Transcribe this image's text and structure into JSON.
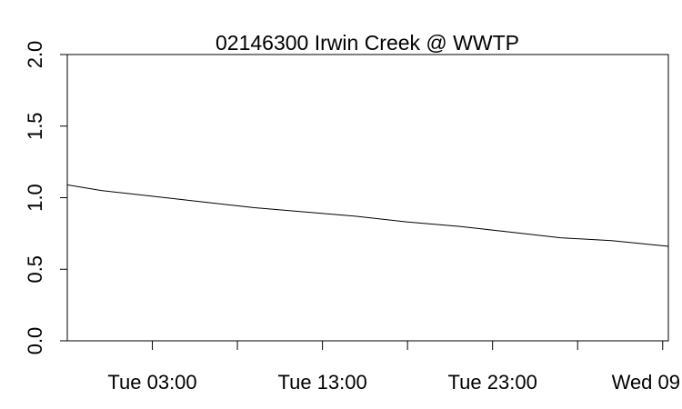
{
  "chart_data": {
    "type": "line",
    "title": "02146300 Irwin Creek @ WWTP",
    "xlabel": "",
    "ylabel": "",
    "ylim": [
      0,
      2
    ],
    "y_ticks": [
      {
        "value": 0.0,
        "label": "0.0"
      },
      {
        "value": 0.5,
        "label": "0.5"
      },
      {
        "value": 1.0,
        "label": "1.0"
      },
      {
        "value": 1.5,
        "label": "1.5"
      },
      {
        "value": 2.0,
        "label": "2.0"
      }
    ],
    "x_ticks": [
      {
        "label": "Tue 03:00",
        "x": "Tue 03:00"
      },
      {
        "label": "",
        "x": "Tue 08:00"
      },
      {
        "label": "Tue 13:00",
        "x": "Tue 13:00"
      },
      {
        "label": "",
        "x": "Tue 18:00"
      },
      {
        "label": "Tue 23:00",
        "x": "Tue 23:00"
      },
      {
        "label": "",
        "x": "Wed 04:00"
      },
      {
        "label": "Wed 09",
        "x": "Wed 09:00"
      }
    ],
    "xlim": [
      "Mon 22:00",
      "Wed 09:20"
    ],
    "grid": false,
    "legend": "none",
    "series": [
      {
        "color": "#000000",
        "x": [
          "Mon 22:00",
          "Tue 00:00",
          "Tue 03:00",
          "Tue 06:00",
          "Tue 09:00",
          "Tue 12:00",
          "Tue 15:00",
          "Tue 18:00",
          "Tue 21:00",
          "Wed 00:00",
          "Wed 03:00",
          "Wed 06:00",
          "Wed 09:20"
        ],
        "y": [
          1.09,
          1.05,
          1.01,
          0.97,
          0.93,
          0.9,
          0.87,
          0.83,
          0.8,
          0.76,
          0.72,
          0.7,
          0.66
        ]
      }
    ]
  }
}
